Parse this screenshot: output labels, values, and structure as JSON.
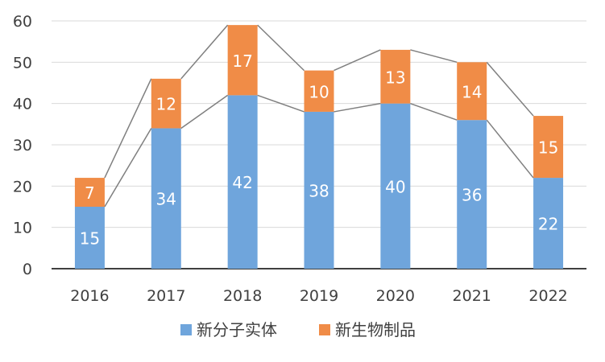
{
  "chart_data": {
    "type": "bar",
    "stacked": true,
    "categories": [
      "2016",
      "2017",
      "2018",
      "2019",
      "2020",
      "2021",
      "2022"
    ],
    "series": [
      {
        "name": "新分子实体",
        "values": [
          15,
          34,
          42,
          38,
          40,
          36,
          22
        ],
        "color": "#6fa5dc"
      },
      {
        "name": "新生物制品",
        "values": [
          7,
          12,
          17,
          10,
          13,
          14,
          15
        ],
        "color": "#f08c47"
      }
    ],
    "ylim": [
      0,
      60
    ],
    "yticks": [
      0,
      10,
      20,
      30,
      40,
      50,
      60
    ],
    "grid": true,
    "series_lines": true,
    "legend": "bottom-center",
    "title": "",
    "xlabel": "",
    "ylabel": ""
  }
}
